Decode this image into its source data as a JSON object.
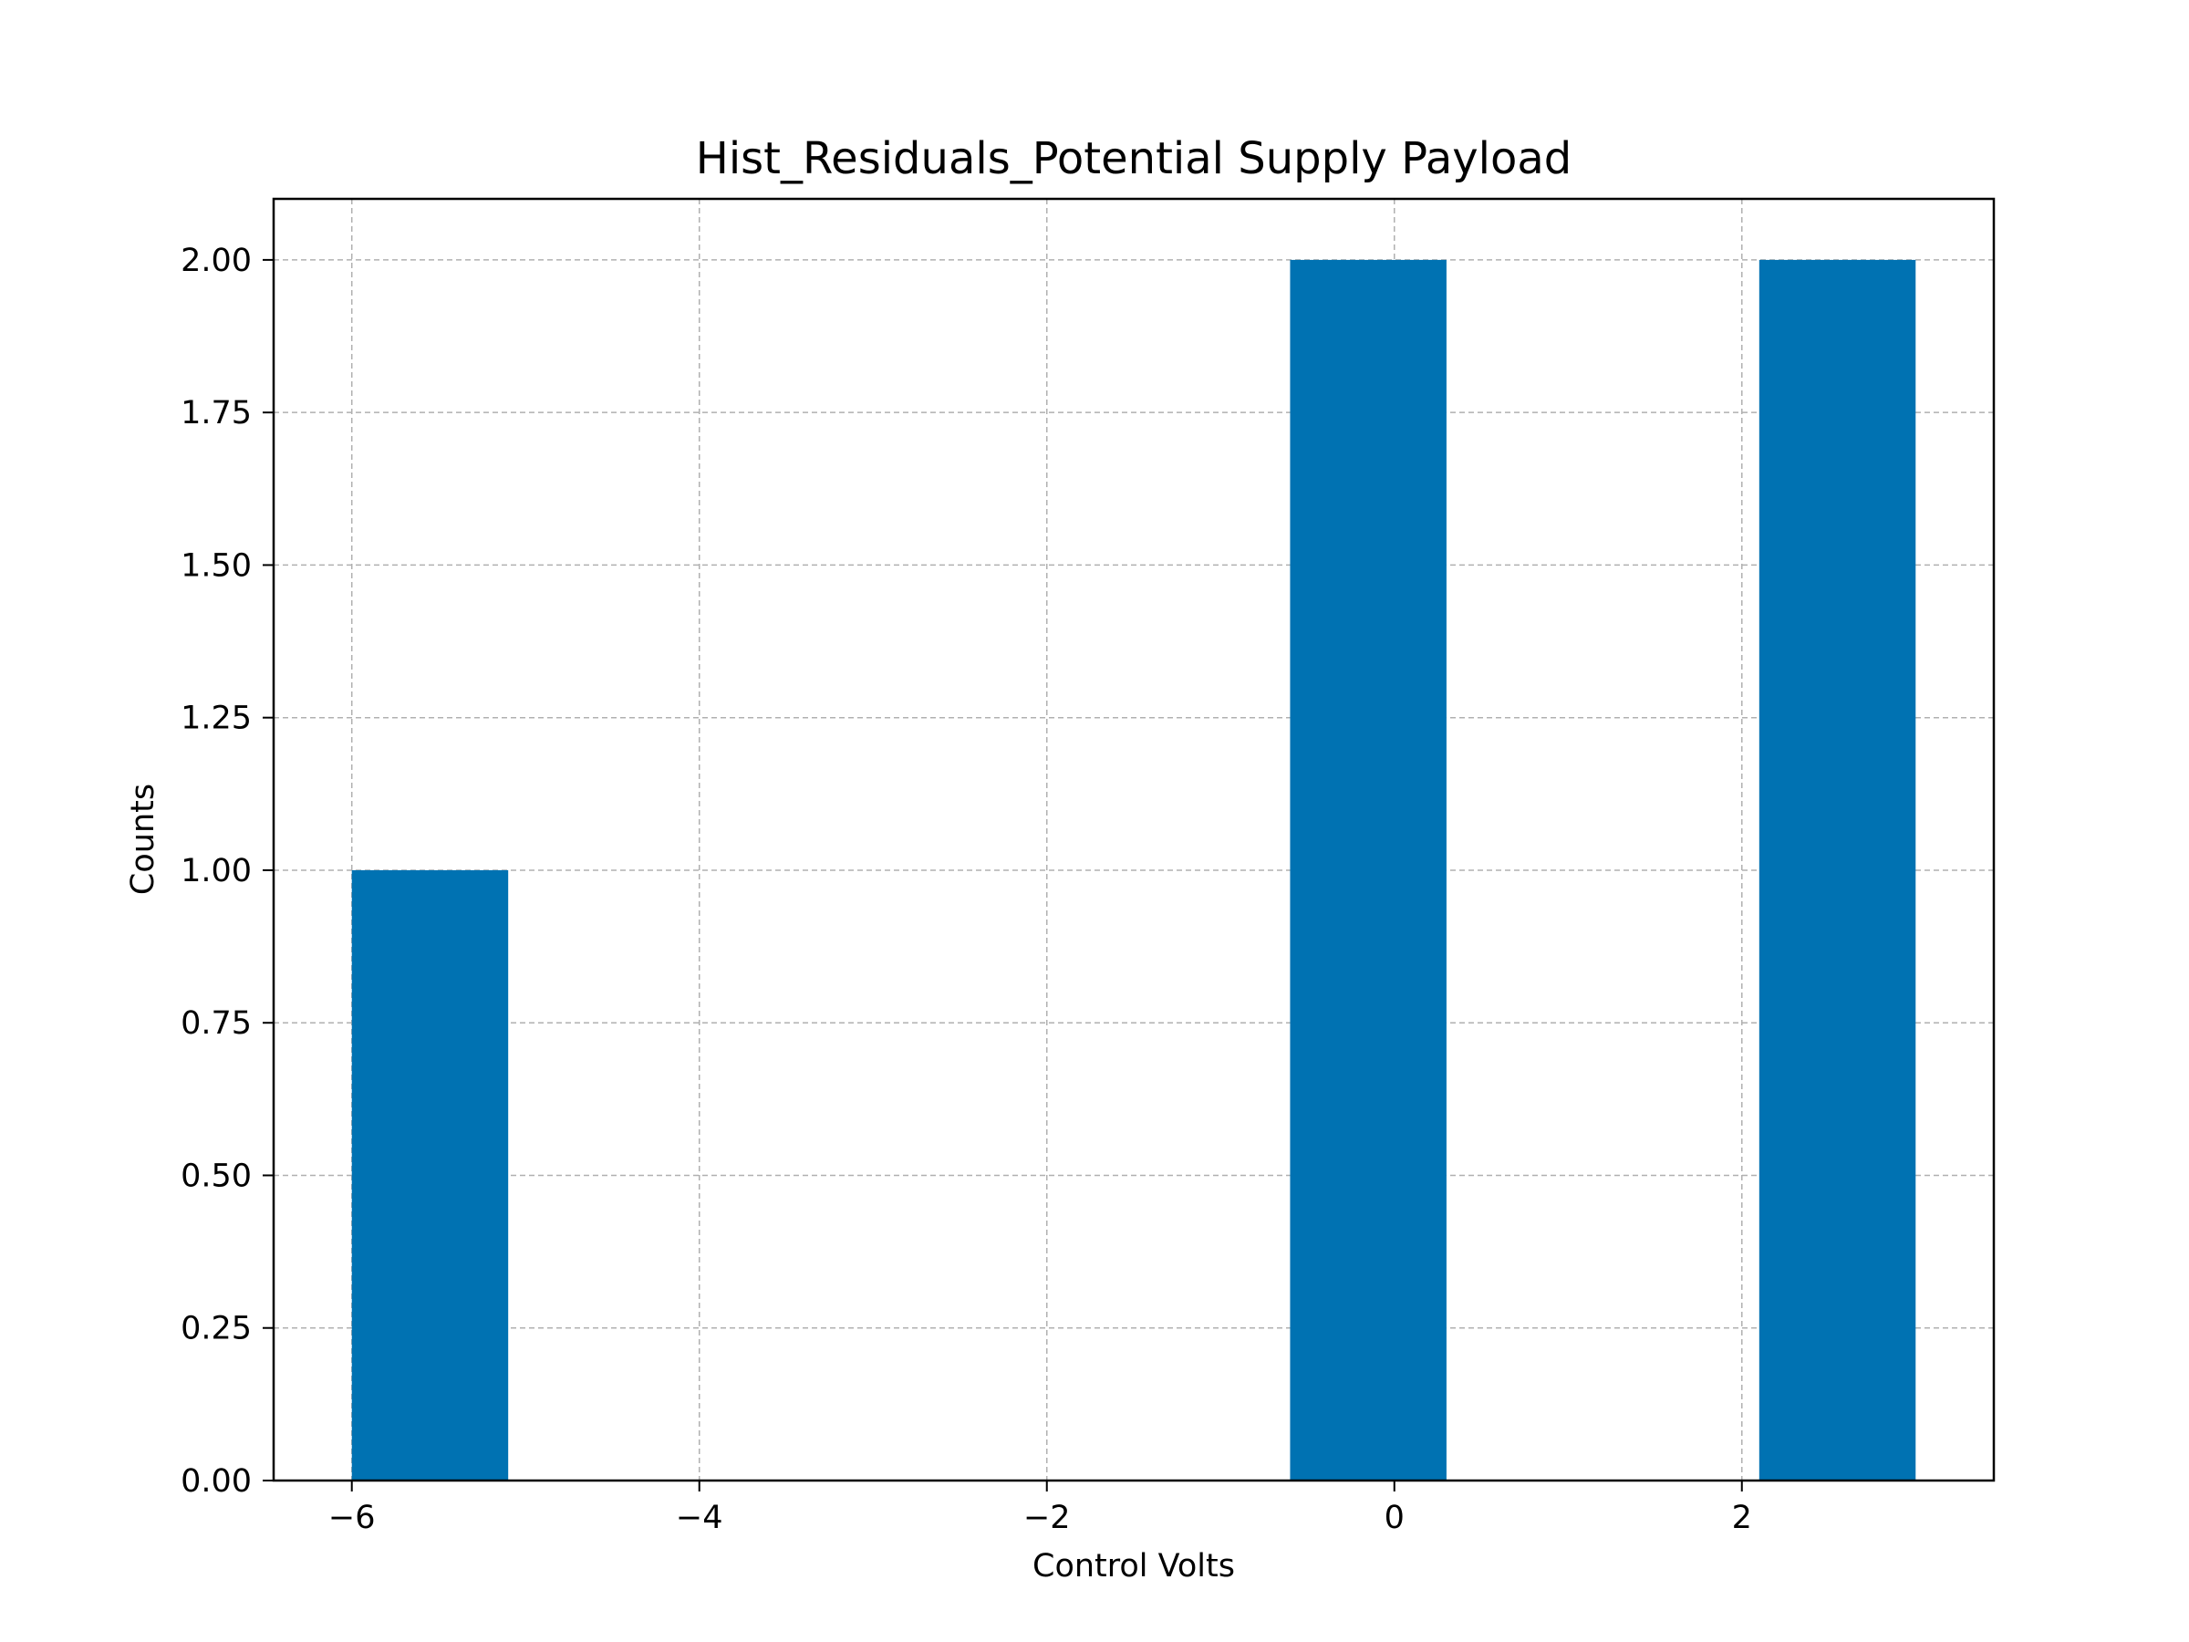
{
  "chart_data": {
    "type": "bar",
    "subtype": "histogram",
    "title": "Hist_Residuals_Potential Supply Payload",
    "xlabel": "Control Volts",
    "ylabel": "Counts",
    "xlim": [
      -6.45,
      3.45
    ],
    "ylim": [
      0,
      2.1
    ],
    "grid": true,
    "bar_color": "#0072B2",
    "x_ticks": [
      -6,
      -4,
      -2,
      0,
      2
    ],
    "x_tick_labels": [
      "−6",
      "−4",
      "−2",
      "0",
      "2"
    ],
    "y_ticks": [
      0,
      0.25,
      0.5,
      0.75,
      1.0,
      1.25,
      1.5,
      1.75,
      2.0
    ],
    "y_tick_labels": [
      "0.00",
      "0.25",
      "0.50",
      "0.75",
      "1.00",
      "1.25",
      "1.50",
      "1.75",
      "2.00"
    ],
    "bins": [
      {
        "x0": -6.0,
        "x1": -5.1,
        "count": 1
      },
      {
        "x0": -5.1,
        "x1": -4.2,
        "count": 0
      },
      {
        "x0": -4.2,
        "x1": -3.3,
        "count": 0
      },
      {
        "x0": -3.3,
        "x1": -2.4,
        "count": 0
      },
      {
        "x0": -2.4,
        "x1": -1.5,
        "count": 0
      },
      {
        "x0": -1.5,
        "x1": -0.6,
        "count": 0
      },
      {
        "x0": -0.6,
        "x1": 0.3,
        "count": 2
      },
      {
        "x0": 0.3,
        "x1": 1.2,
        "count": 0
      },
      {
        "x0": 1.2,
        "x1": 2.1,
        "count": 0
      },
      {
        "x0": 2.1,
        "x1": 3.0,
        "count": 2
      }
    ]
  }
}
